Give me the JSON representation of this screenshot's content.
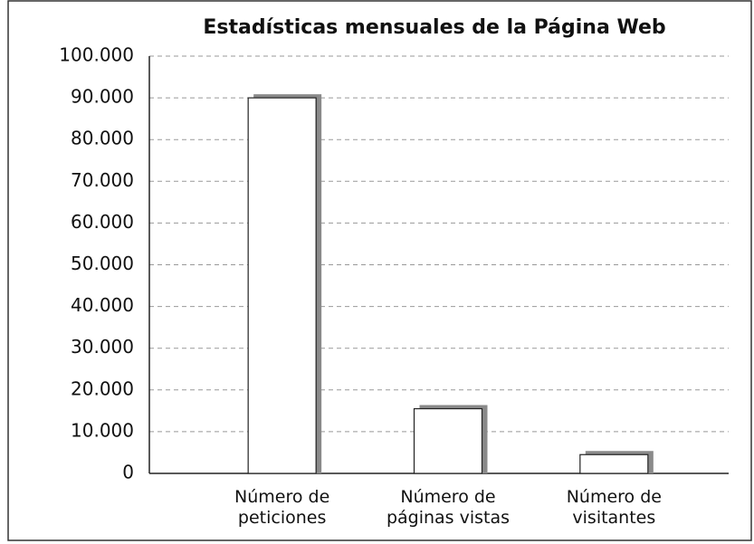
{
  "chart_data": {
    "type": "bar",
    "title": "Estadísticas mensuales de la Página Web",
    "categories": [
      "Número de\npeticiones",
      "Número de\npáginas vistas",
      "Número de\nvisitantes"
    ],
    "values": [
      90000,
      15500,
      4500
    ],
    "color": "#ffffff",
    "shadow_color": "#8a8a8a",
    "ylim": [
      0,
      100000
    ],
    "yticks": [
      0,
      {
        "value": 10000,
        "label": "10.000"
      },
      {
        "value": 20000,
        "label": "20.000"
      },
      {
        "value": 30000,
        "label": "30.000"
      },
      {
        "value": 40000,
        "label": "40.000"
      },
      {
        "value": 50000,
        "label": "50.000"
      },
      {
        "value": 60000,
        "label": "60.000"
      },
      {
        "value": 70000,
        "label": "70.000"
      },
      {
        "value": 80000,
        "label": "80.000"
      },
      {
        "value": 90000,
        "label": "90.000"
      },
      {
        "value": 100000,
        "label": "100.000"
      }
    ],
    "grid": true
  }
}
